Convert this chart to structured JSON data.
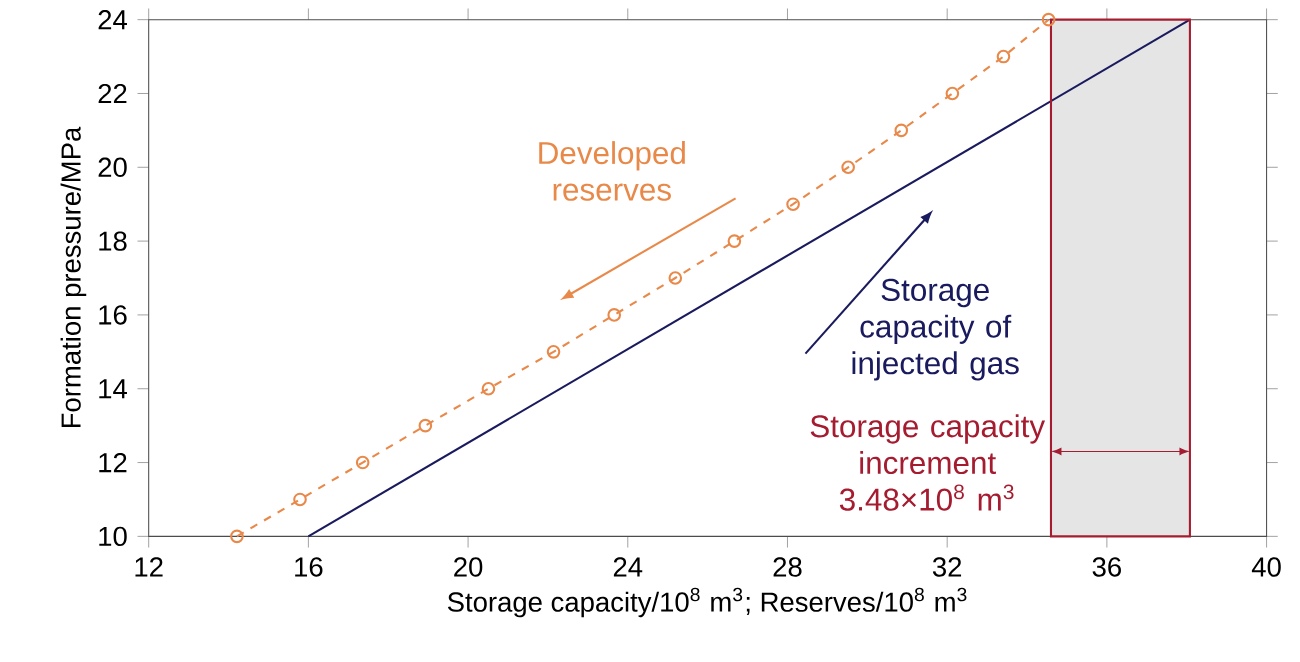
{
  "chart_data": {
    "type": "line",
    "xlabel": "Storage capacity/10$^{8}$ m$^{3}$; Reserves/10$^{8}$ m$^{3}$",
    "ylabel": "Formation pressure/MPa",
    "xlim": [
      12,
      40
    ],
    "ylim": [
      10,
      24
    ],
    "xticks": [
      12,
      16,
      20,
      24,
      28,
      32,
      36,
      40
    ],
    "yticks": [
      10,
      12,
      14,
      16,
      18,
      20,
      22,
      24
    ],
    "series": [
      {
        "color": "#e8894a",
        "marker": "circle",
        "line_style": "dashed",
        "x": [
          14.21,
          15.79,
          17.36,
          18.93,
          20.51,
          22.14,
          23.66,
          25.19,
          26.67,
          28.14,
          29.52,
          30.85,
          32.13,
          33.41,
          34.54
        ],
        "values": [
          10,
          11,
          12,
          13,
          14,
          15,
          16,
          17,
          18,
          19,
          20,
          21,
          22,
          23,
          24
        ]
      },
      {
        "color": "#1a1a5e",
        "marker": "none",
        "line_style": "solid",
        "x": [
          16,
          38.08
        ],
        "values": [
          10,
          24
        ]
      }
    ],
    "bands": [
      {
        "axis": "x",
        "from": 34.6,
        "to": 38.08,
        "label": "Storage capacity increment 3.48×10$^{8}$ m$^{3}$"
      }
    ],
    "annotations": [
      "Developed reserves",
      "Storage capacity of injected gas"
    ]
  }
}
